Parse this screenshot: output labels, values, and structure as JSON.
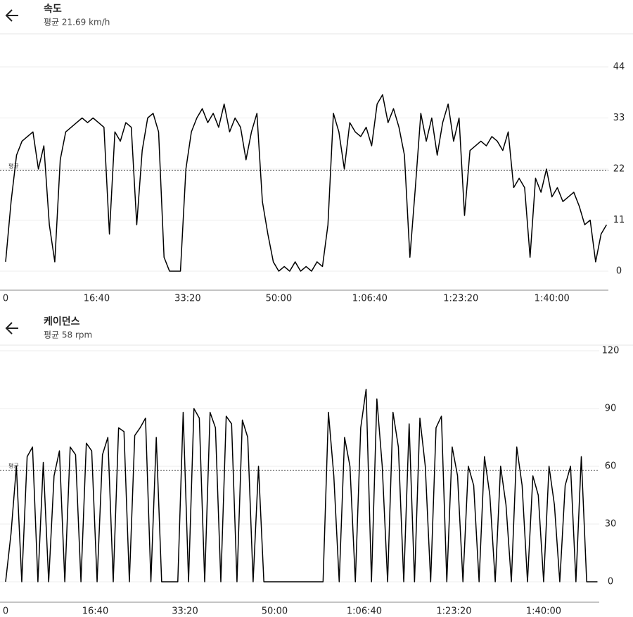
{
  "chart_data": [
    {
      "type": "line",
      "title": "속도",
      "subtitle": "평균 21.69 km/h",
      "average_label": "평균",
      "average": 21.69,
      "x": [
        0,
        60,
        120,
        180,
        240,
        300,
        360,
        420,
        480,
        540,
        600,
        660,
        720,
        780,
        840,
        900,
        960,
        1020,
        1080,
        1140,
        1200,
        1260,
        1320,
        1380,
        1440,
        1500,
        1560,
        1620,
        1680,
        1740,
        1800,
        1860,
        1920,
        1980,
        2040,
        2100,
        2160,
        2220,
        2280,
        2340,
        2400,
        2460,
        2520,
        2580,
        2640,
        2700,
        2760,
        2820,
        2880,
        2940,
        3000,
        3060,
        3120,
        3180,
        3240,
        3300,
        3360,
        3420,
        3480,
        3540,
        3600,
        3660,
        3720,
        3780,
        3840,
        3900,
        3960,
        4020,
        4080,
        4140,
        4200,
        4260,
        4320,
        4380,
        4440,
        4500,
        4560,
        4620,
        4680,
        4740,
        4800,
        4860,
        4920,
        4980,
        5040,
        5100,
        5160,
        5220,
        5280,
        5340,
        5400,
        5460,
        5520,
        5580,
        5640,
        5700,
        5760,
        5820,
        5880,
        5940,
        6000,
        6060,
        6120,
        6180,
        6240,
        6300,
        6360,
        6420,
        6480,
        6540,
        6600
      ],
      "series": [
        {
          "color": "#000000",
          "values": [
            2,
            15,
            25,
            28,
            29,
            30,
            22,
            27,
            10,
            2,
            24,
            30,
            31,
            32,
            33,
            32,
            33,
            32,
            31,
            8,
            30,
            28,
            32,
            31,
            10,
            26,
            33,
            34,
            30,
            3,
            0,
            0,
            0,
            22,
            30,
            33,
            35,
            32,
            34,
            31,
            36,
            30,
            33,
            31,
            24,
            30,
            34,
            15,
            8,
            2,
            0,
            1,
            0,
            2,
            0,
            1,
            0,
            2,
            1,
            10,
            34,
            30,
            22,
            32,
            30,
            29,
            31,
            27,
            36,
            38,
            32,
            35,
            31,
            25,
            3,
            18,
            34,
            28,
            33,
            25,
            32,
            36,
            28,
            33,
            12,
            26,
            27,
            28,
            27,
            29,
            28,
            26,
            30,
            18,
            20,
            18,
            3,
            20,
            17,
            22,
            16,
            18,
            15,
            16,
            17,
            14,
            10,
            11,
            2,
            8,
            10
          ]
        }
      ],
      "xlim": [
        0,
        6620
      ],
      "ylim": [
        0,
        44
      ],
      "xticks": [
        0,
        {
          "value": 1000,
          "label": "16:40"
        },
        {
          "value": 2000,
          "label": "33:20"
        },
        {
          "value": 3000,
          "label": "50:00"
        },
        {
          "value": 4000,
          "label": "1:06:40"
        },
        {
          "value": 5000,
          "label": "1:23:20"
        },
        {
          "value": 6000,
          "label": "1:40:00"
        }
      ],
      "yticks": [
        0,
        11,
        22,
        33,
        44
      ],
      "grid": true
    },
    {
      "type": "line",
      "title": "케이던스",
      "subtitle": "평균 58 rpm",
      "average_label": "평균",
      "average": 58,
      "x": [
        0,
        60,
        120,
        180,
        240,
        300,
        360,
        420,
        480,
        540,
        600,
        660,
        720,
        780,
        840,
        900,
        960,
        1020,
        1080,
        1140,
        1200,
        1260,
        1320,
        1380,
        1440,
        1500,
        1560,
        1620,
        1680,
        1740,
        1800,
        1860,
        1920,
        1980,
        2040,
        2100,
        2160,
        2220,
        2280,
        2340,
        2400,
        2460,
        2520,
        2580,
        2640,
        2700,
        2760,
        2820,
        2880,
        2940,
        3000,
        3060,
        3120,
        3180,
        3240,
        3300,
        3360,
        3420,
        3480,
        3540,
        3600,
        3660,
        3720,
        3780,
        3840,
        3900,
        3960,
        4020,
        4080,
        4140,
        4200,
        4260,
        4320,
        4380,
        4440,
        4500,
        4560,
        4620,
        4680,
        4740,
        4800,
        4860,
        4920,
        4980,
        5040,
        5100,
        5160,
        5220,
        5280,
        5340,
        5400,
        5460,
        5520,
        5580,
        5640,
        5700,
        5760,
        5820,
        5880,
        5940,
        6000,
        6060,
        6120,
        6180,
        6240,
        6300,
        6360,
        6420,
        6480,
        6540,
        6600
      ],
      "series": [
        {
          "color": "#000000",
          "values": [
            0,
            25,
            60,
            0,
            65,
            70,
            0,
            62,
            0,
            55,
            68,
            0,
            70,
            66,
            0,
            72,
            68,
            0,
            66,
            75,
            0,
            80,
            78,
            0,
            76,
            80,
            85,
            0,
            75,
            0,
            0,
            0,
            0,
            88,
            0,
            90,
            85,
            0,
            88,
            80,
            0,
            86,
            82,
            0,
            84,
            75,
            0,
            60,
            0,
            0,
            0,
            0,
            0,
            0,
            0,
            0,
            0,
            0,
            0,
            0,
            88,
            55,
            0,
            75,
            60,
            0,
            80,
            100,
            0,
            95,
            60,
            0,
            88,
            70,
            0,
            82,
            0,
            85,
            60,
            0,
            80,
            86,
            0,
            70,
            55,
            0,
            60,
            50,
            0,
            65,
            45,
            0,
            60,
            40,
            0,
            70,
            50,
            0,
            55,
            45,
            0,
            60,
            40,
            0,
            50,
            60,
            0,
            65,
            0,
            0,
            0
          ]
        }
      ],
      "xlim": [
        0,
        6620
      ],
      "ylim": [
        0,
        120
      ],
      "xticks": [
        0,
        {
          "value": 1000,
          "label": "16:40"
        },
        {
          "value": 2000,
          "label": "33:20"
        },
        {
          "value": 3000,
          "label": "50:00"
        },
        {
          "value": 4000,
          "label": "1:06:40"
        },
        {
          "value": 5000,
          "label": "1:23:20"
        },
        {
          "value": 6000,
          "label": "1:40:00"
        }
      ],
      "yticks": [
        0,
        30,
        60,
        90,
        120
      ],
      "grid": true
    }
  ]
}
